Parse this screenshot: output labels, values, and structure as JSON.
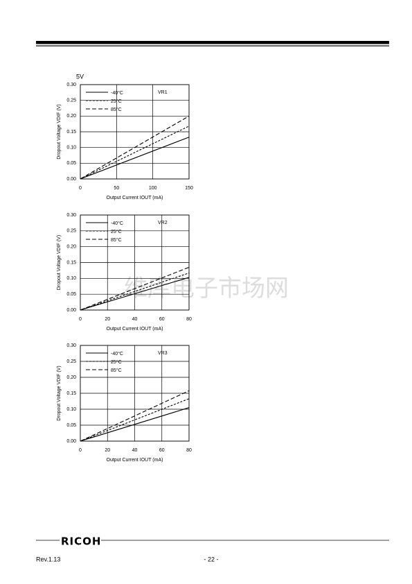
{
  "chart_data": [
    {
      "type": "line",
      "title": "5V",
      "annotation": "VR1",
      "x_label": "Output Current IOUT (mA)",
      "y_label": "Dropout Voltage VDIF (V)",
      "xlim": [
        0,
        150
      ],
      "xticks": [
        0,
        50,
        100,
        150
      ],
      "ylim": [
        0,
        0.3
      ],
      "yticks": [
        {
          "value": 0,
          "label": "0.00"
        },
        0.05,
        {
          "value": 0.1,
          "label": "0.10"
        },
        0.15,
        {
          "value": 0.2,
          "label": "0.20"
        },
        0.25,
        {
          "value": 0.3,
          "label": "0.30"
        }
      ],
      "grid": true,
      "legend": "top-left",
      "x": [
        0,
        150
      ],
      "series": [
        {
          "name": "-40°C",
          "color": "#000000",
          "dash": "solid",
          "values": [
            0,
            0.133
          ]
        },
        {
          "name": "25°C",
          "color": "#000000",
          "dash": "dotted",
          "values": [
            0,
            0.168
          ]
        },
        {
          "name": "85°C",
          "color": "#000000",
          "dash": "dashed",
          "values": [
            0,
            0.2
          ]
        }
      ]
    },
    {
      "type": "line",
      "annotation": "VR2",
      "x_label": "Output Current IOUT (mA)",
      "y_label": "Dropout Voltage VDIF (V)",
      "xlim": [
        0,
        80
      ],
      "xticks": [
        0,
        20,
        40,
        60,
        80
      ],
      "ylim": [
        0,
        0.3
      ],
      "yticks": [
        {
          "value": 0,
          "label": "0.00"
        },
        0.05,
        {
          "value": 0.1,
          "label": "0.10"
        },
        0.15,
        {
          "value": 0.2,
          "label": "0.20"
        },
        0.25,
        {
          "value": 0.3,
          "label": "0.30"
        }
      ],
      "grid": true,
      "legend": "top-left",
      "x": [
        0,
        80
      ],
      "series": [
        {
          "name": "-40°C",
          "color": "#000000",
          "dash": "solid",
          "values": [
            0,
            0.103
          ]
        },
        {
          "name": "25°C",
          "color": "#000000",
          "dash": "dotted",
          "values": [
            0,
            0.117
          ]
        },
        {
          "name": "85°C",
          "color": "#000000",
          "dash": "dashed",
          "values": [
            0,
            0.135
          ]
        }
      ]
    },
    {
      "type": "line",
      "annotation": "VR3",
      "x_label": "Output Current IOUT (mA)",
      "y_label": "Dropout Voltage VDIF (V)",
      "xlim": [
        0,
        80
      ],
      "xticks": [
        0,
        20,
        40,
        60,
        80
      ],
      "ylim": [
        0,
        0.3
      ],
      "yticks": [
        {
          "value": 0,
          "label": "0.00"
        },
        0.05,
        {
          "value": 0.1,
          "label": "0.10"
        },
        0.15,
        {
          "value": 0.2,
          "label": "0.20"
        },
        0.25,
        {
          "value": 0.3,
          "label": "0.30"
        }
      ],
      "grid": true,
      "legend": "top-left",
      "x": [
        0,
        80
      ],
      "series": [
        {
          "name": "-40°C",
          "color": "#000000",
          "dash": "solid",
          "values": [
            0,
            0.105
          ]
        },
        {
          "name": "25°C",
          "color": "#000000",
          "dash": "dotted",
          "values": [
            0,
            0.133
          ]
        },
        {
          "name": "85°C",
          "color": "#000000",
          "dash": "dashed",
          "values": [
            0,
            0.158
          ]
        }
      ]
    }
  ],
  "watermark": "维库电子市场网",
  "footer": {
    "brand": "RICOH",
    "revision": "Rev.1.13",
    "page": "- 22 -"
  }
}
